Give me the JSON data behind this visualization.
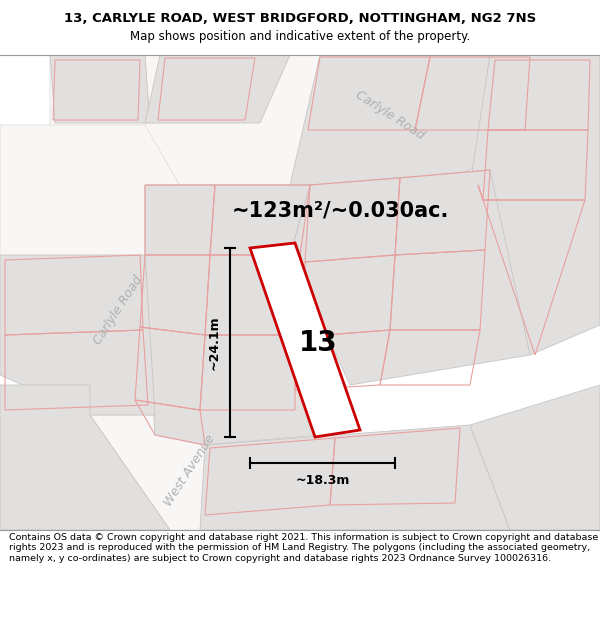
{
  "title": "13, CARLYLE ROAD, WEST BRIDGFORD, NOTTINGHAM, NG2 7NS",
  "subtitle": "Map shows position and indicative extent of the property.",
  "footer": "Contains OS data © Crown copyright and database right 2021. This information is subject to Crown copyright and database rights 2023 and is reproduced with the permission of HM Land Registry. The polygons (including the associated geometry, namely x, y co-ordinates) are subject to Crown copyright and database rights 2023 Ordnance Survey 100026316.",
  "area_text": "~123m²/~0.030ac.",
  "label_13": "13",
  "dim_height": "~24.1m",
  "dim_width": "~18.3m",
  "road_label_carlyle_top": "Carlyle Road",
  "road_label_carlyle_left": "Carlyle Road",
  "road_label_west": "West Avenue",
  "map_bg": "#f2f0ee",
  "road_bg": "#f8f7f6",
  "block_fill": "#e2e0de",
  "block_edge": "#c8c6c4",
  "pink_edge": "#e8a0a0",
  "property_fill": "#ffffff",
  "property_stroke": "#cc0000",
  "title_fontsize": 9.5,
  "subtitle_fontsize": 8.5,
  "footer_fontsize": 6.8,
  "area_fontsize": 15,
  "label_fontsize": 20,
  "dim_fontsize": 9,
  "road_label_fontsize": 9
}
